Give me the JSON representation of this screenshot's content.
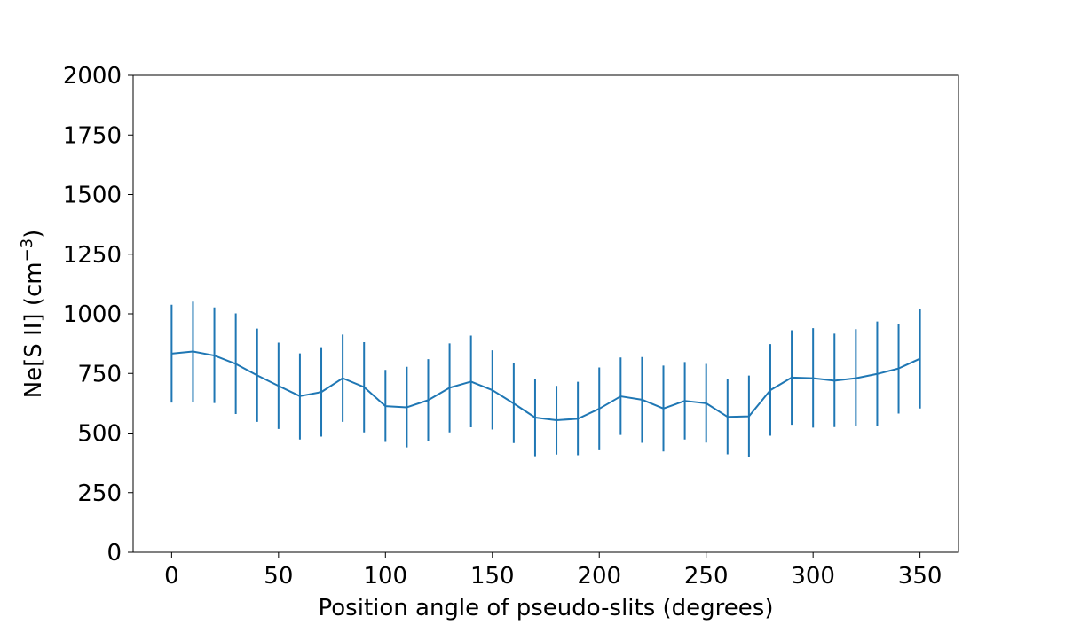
{
  "chart_data": {
    "type": "line",
    "title": "",
    "xlabel": "Position angle of pseudo-slits (degrees)",
    "ylabel_main": "Ne[S II] (cm",
    "ylabel_sup": "−3",
    "ylabel_close": ")",
    "xlim": [
      -18,
      368
    ],
    "ylim": [
      0,
      2000
    ],
    "xticks": [
      0,
      50,
      100,
      150,
      200,
      250,
      300,
      350
    ],
    "xtick_labels": [
      "0",
      "50",
      "100",
      "150",
      "200",
      "250",
      "300",
      "350"
    ],
    "yticks": [
      0,
      250,
      500,
      750,
      1000,
      1250,
      1500,
      1750,
      2000
    ],
    "ytick_labels": [
      "0",
      "250",
      "500",
      "750",
      "1000",
      "1250",
      "1500",
      "1750",
      "2000"
    ],
    "grid": false,
    "line_color": "#1f77b4",
    "series": [
      {
        "x": [
          0,
          10,
          20,
          30,
          40,
          50,
          60,
          70,
          80,
          90,
          100,
          110,
          120,
          130,
          140,
          150,
          160,
          170,
          180,
          190,
          200,
          210,
          220,
          230,
          240,
          250,
          260,
          270,
          280,
          290,
          300,
          310,
          320,
          330,
          340,
          350
        ],
        "y": [
          833,
          842,
          825,
          790,
          742,
          698,
          655,
          672,
          730,
          693,
          613,
          608,
          638,
          690,
          716,
          680,
          624,
          565,
          554,
          560,
          602,
          654,
          640,
          603,
          635,
          625,
          568,
          570,
          680,
          733,
          730,
          720,
          730,
          748,
          771,
          812
        ],
        "yerr_low": [
          628,
          631,
          626,
          580,
          547,
          517,
          473,
          485,
          547,
          503,
          463,
          440,
          467,
          503,
          524,
          515,
          458,
          403,
          410,
          407,
          428,
          492,
          459,
          423,
          473,
          460,
          411,
          400,
          489,
          535,
          523,
          525,
          528,
          528,
          582,
          603
        ],
        "yerr_high": [
          1038,
          1051,
          1027,
          1002,
          938,
          879,
          834,
          860,
          913,
          881,
          765,
          778,
          810,
          876,
          909,
          847,
          794,
          727,
          698,
          715,
          775,
          817,
          819,
          783,
          798,
          790,
          727,
          741,
          873,
          931,
          940,
          917,
          936,
          968,
          958,
          1021
        ]
      }
    ]
  }
}
